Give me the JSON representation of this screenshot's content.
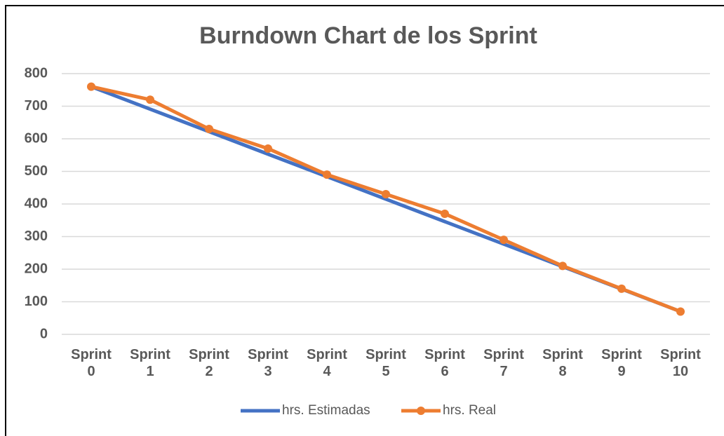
{
  "chart_data": {
    "type": "line",
    "title": "Burndown Chart de los Sprint",
    "categories": [
      "Sprint 0",
      "Sprint 1",
      "Sprint 2",
      "Sprint 3",
      "Sprint 4",
      "Sprint 5",
      "Sprint 6",
      "Sprint 7",
      "Sprint 8",
      "Sprint 9",
      "Sprint 10"
    ],
    "series": [
      {
        "name": "hrs. Estimadas",
        "color": "#4472c4",
        "marker": false,
        "values": [
          760,
          691,
          622,
          553,
          484,
          415,
          346,
          277,
          208,
          139,
          70
        ]
      },
      {
        "name": "hrs. Real",
        "color": "#ed7d31",
        "marker": true,
        "values": [
          760,
          720,
          630,
          570,
          490,
          430,
          370,
          290,
          210,
          140,
          70
        ]
      }
    ],
    "ylim": [
      0,
      800
    ],
    "yticks": [
      0,
      100,
      200,
      300,
      400,
      500,
      600,
      700,
      800
    ],
    "grid": true,
    "legend": "bottom"
  }
}
